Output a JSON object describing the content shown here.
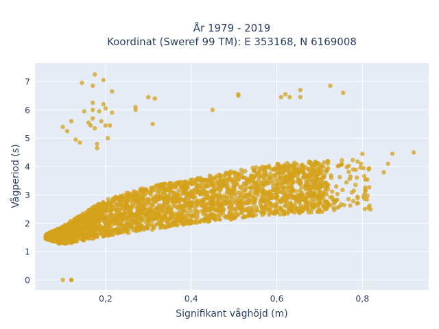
{
  "chart_data": {
    "type": "scatter",
    "title_line1": "År 1979 - 2019",
    "title_line2": "Koordinat (Sweref 99 TM): E 353168, N 6169008",
    "xlabel": "Signifikant våghöjd (m)",
    "ylabel": "Vågperiod (s)",
    "xlim": [
      0.035,
      0.955
    ],
    "ylim": [
      -0.35,
      7.65
    ],
    "x_ticks": [
      0.2,
      0.4,
      0.6,
      0.8
    ],
    "x_tick_labels": [
      "0,2",
      "0,4",
      "0,6",
      "0,8"
    ],
    "y_ticks": [
      0,
      1,
      2,
      3,
      4,
      5,
      6,
      7
    ],
    "y_tick_labels": [
      "0",
      "1",
      "2",
      "3",
      "4",
      "5",
      "6",
      "7"
    ],
    "grid": true,
    "plot_bg": "#e5ecf6",
    "marker_color": "#d4a21b",
    "main_cloud": {
      "note": "dense band of points",
      "lower_edge": [
        [
          0.06,
          1.45
        ],
        [
          0.1,
          1.25
        ],
        [
          0.2,
          1.55
        ],
        [
          0.3,
          1.75
        ],
        [
          0.4,
          2.0
        ],
        [
          0.5,
          2.15
        ],
        [
          0.6,
          2.3
        ],
        [
          0.7,
          2.4
        ]
      ],
      "upper_edge": [
        [
          0.06,
          1.6
        ],
        [
          0.1,
          1.9
        ],
        [
          0.2,
          2.85
        ],
        [
          0.3,
          3.3
        ],
        [
          0.4,
          3.55
        ],
        [
          0.5,
          3.85
        ],
        [
          0.6,
          4.1
        ],
        [
          0.7,
          4.2
        ],
        [
          0.8,
          4.3
        ]
      ]
    },
    "outliers": [
      [
        0.1,
        0.0
      ],
      [
        0.12,
        0.0
      ],
      [
        0.1,
        5.4
      ],
      [
        0.11,
        5.25
      ],
      [
        0.12,
        5.6
      ],
      [
        0.13,
        4.95
      ],
      [
        0.14,
        4.85
      ],
      [
        0.15,
        5.95
      ],
      [
        0.16,
        5.55
      ],
      [
        0.165,
        5.45
      ],
      [
        0.17,
        6.0
      ],
      [
        0.17,
        5.7
      ],
      [
        0.175,
        5.35
      ],
      [
        0.18,
        4.65
      ],
      [
        0.18,
        4.8
      ],
      [
        0.185,
        5.95
      ],
      [
        0.19,
        5.6
      ],
      [
        0.195,
        6.2
      ],
      [
        0.2,
        5.45
      ],
      [
        0.2,
        6.05
      ],
      [
        0.21,
        5.45
      ],
      [
        0.215,
        5.9
      ],
      [
        0.215,
        6.65
      ],
      [
        0.195,
        7.05
      ],
      [
        0.175,
        7.25
      ],
      [
        0.145,
        6.95
      ],
      [
        0.17,
        6.85
      ],
      [
        0.17,
        6.25
      ],
      [
        0.205,
        5.0
      ],
      [
        0.27,
        6.1
      ],
      [
        0.27,
        6.0
      ],
      [
        0.3,
        6.45
      ],
      [
        0.315,
        6.4
      ],
      [
        0.31,
        5.5
      ],
      [
        0.45,
        6.0
      ],
      [
        0.51,
        6.55
      ],
      [
        0.51,
        6.5
      ],
      [
        0.61,
        6.45
      ],
      [
        0.62,
        6.55
      ],
      [
        0.63,
        6.45
      ],
      [
        0.655,
        6.7
      ],
      [
        0.655,
        6.45
      ],
      [
        0.725,
        6.85
      ],
      [
        0.755,
        6.6
      ],
      [
        0.92,
        4.5
      ],
      [
        0.87,
        4.45
      ],
      [
        0.86,
        4.1
      ],
      [
        0.8,
        4.45
      ],
      [
        0.85,
        3.8
      ],
      [
        0.78,
        3.15
      ],
      [
        0.72,
        2.6
      ],
      [
        0.7,
        2.5
      ],
      [
        0.12,
        0.0
      ]
    ]
  }
}
